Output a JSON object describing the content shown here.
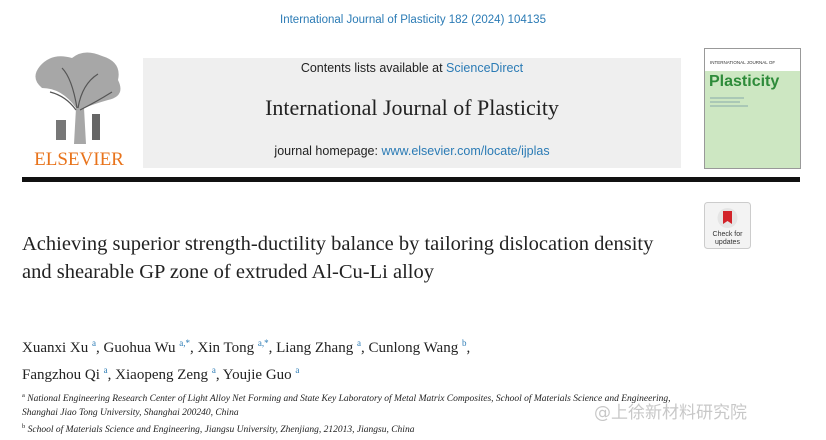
{
  "header": {
    "citation": "International Journal of Plasticity 182 (2024) 104135",
    "contents_prefix": "Contents lists available at",
    "contents_link": "ScienceDirect",
    "journal": "International Journal of Plasticity",
    "homepage_prefix": "journal homepage:",
    "homepage_link": "www.elsevier.com/locate/ijplas",
    "publisher": "ELSEVIER",
    "cover_top": "INTERNATIONAL JOURNAL OF",
    "cover_title": "Plasticity"
  },
  "badge": {
    "line1": "Check for",
    "line2": "updates"
  },
  "article": {
    "title": "Achieving superior strength-ductility balance by tailoring dislocation density and shearable GP zone of extruded Al-Cu-Li alloy",
    "authors": [
      {
        "name": "Xuanxi Xu",
        "affil": "a"
      },
      {
        "name": "Guohua Wu",
        "affil": "a,*"
      },
      {
        "name": "Xin Tong",
        "affil": "a,*"
      },
      {
        "name": "Liang Zhang",
        "affil": "a"
      },
      {
        "name": "Cunlong Wang",
        "affil": "b"
      },
      {
        "name": "Fangzhou Qi",
        "affil": "a"
      },
      {
        "name": "Xiaopeng Zeng",
        "affil": "a"
      },
      {
        "name": "Youjie Guo",
        "affil": "a"
      }
    ],
    "affiliations": [
      {
        "marker": "a",
        "text": "National Engineering Research Center of Light Alloy Net Forming and State Key Laboratory of Metal Matrix Composites, School of Materials Science and Engineering, Shanghai Jiao Tong University, Shanghai 200240, China"
      },
      {
        "marker": "b",
        "text": "School of Materials Science and Engineering, Jiangsu University, Zhenjiang, 212013, Jiangsu, China"
      }
    ]
  },
  "watermark": "@上徐新材料研究院"
}
